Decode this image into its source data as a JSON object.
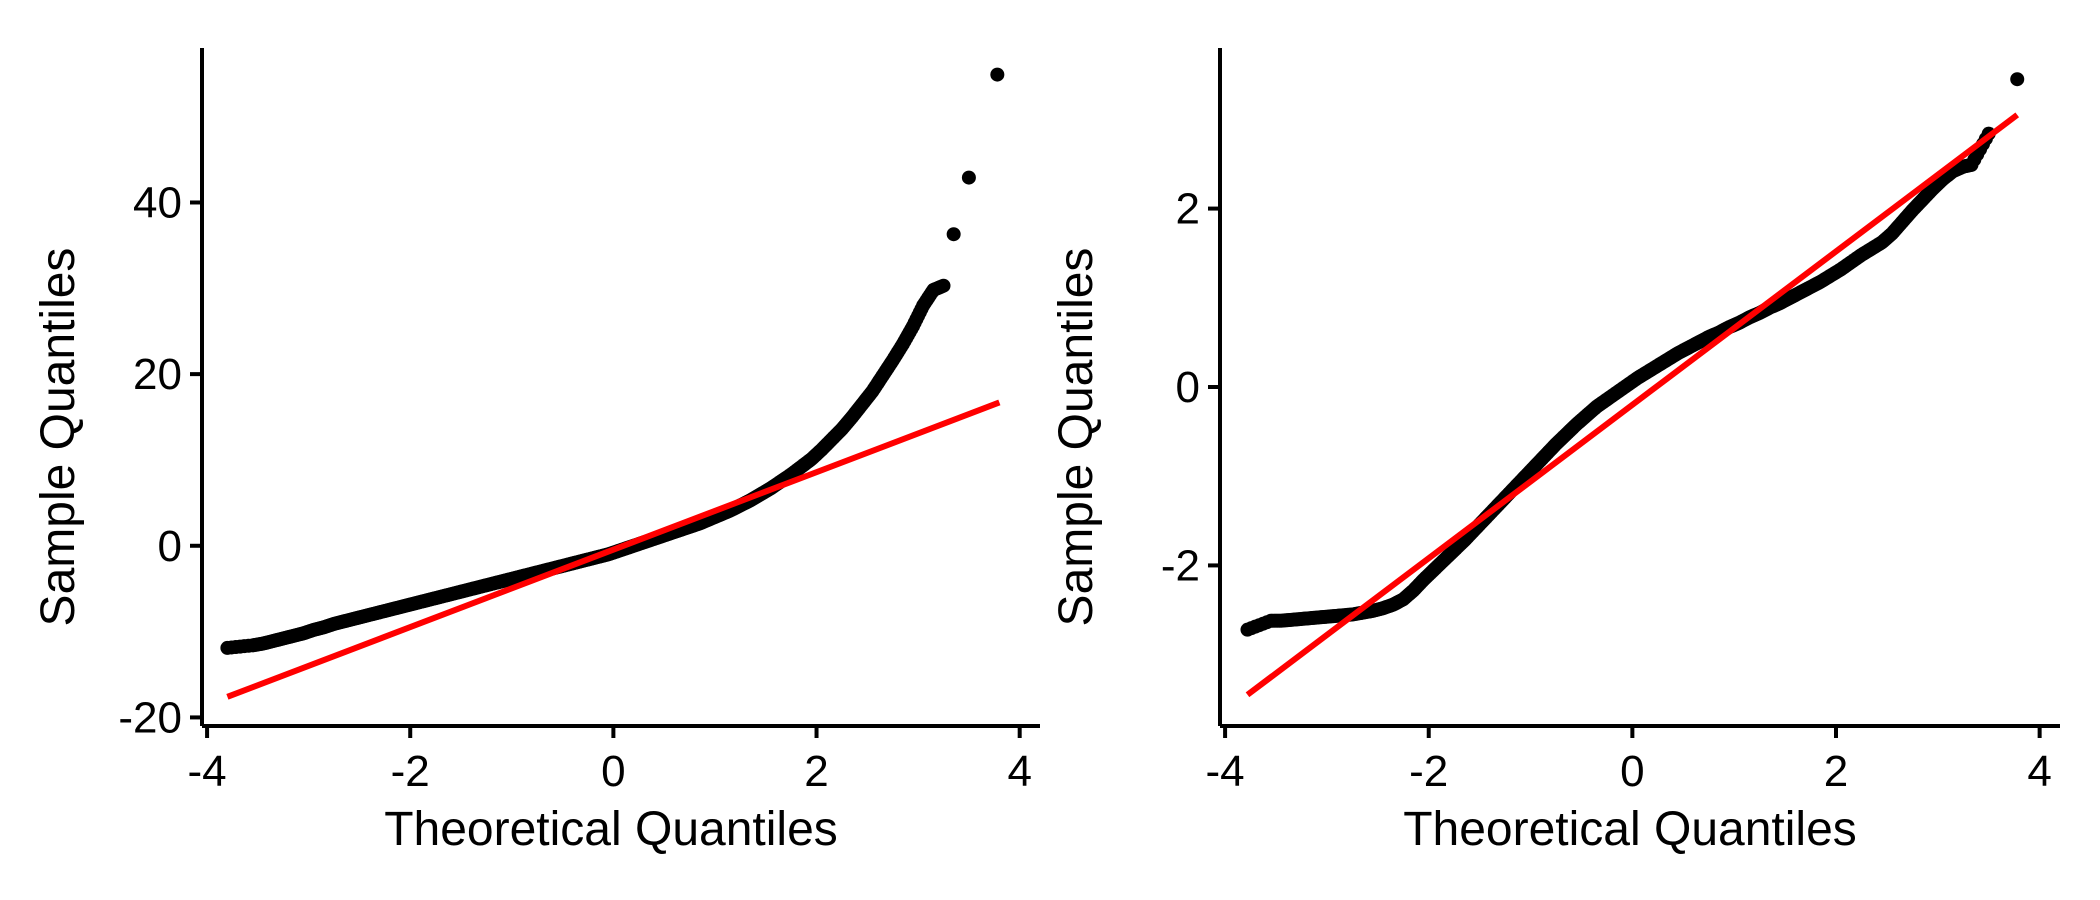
{
  "chart_data": [
    {
      "type": "scatter",
      "title": "",
      "xlabel": "Theoretical Quantiles",
      "ylabel": "Sample Quantiles",
      "xlim": [
        -4.05,
        4.2
      ],
      "ylim": [
        -21,
        58
      ],
      "xticks": [
        -4,
        -2,
        0,
        2,
        4
      ],
      "yticks": [
        -20,
        0,
        20,
        40
      ],
      "xtick_labels": [
        "-4",
        "-2",
        "0",
        "2",
        "4"
      ],
      "ytick_labels": [
        "-20",
        "0",
        "20",
        "40"
      ],
      "grid": false,
      "legend": "none",
      "point_color": "#000000",
      "line_color": "#ff0000",
      "reference_line": {
        "x": [
          -3.8,
          3.8
        ],
        "y": [
          -17.6,
          16.7
        ]
      },
      "points": {
        "x": [
          -3.8,
          -3.55,
          -3.45,
          -3.35,
          -3.25,
          -3.15,
          -3.05,
          -2.95,
          -2.85,
          -2.75,
          -2.65,
          -2.55,
          -2.45,
          -2.35,
          -2.25,
          -2.15,
          -2.05,
          -1.95,
          -1.85,
          -1.75,
          -1.65,
          -1.55,
          -1.45,
          -1.35,
          -1.25,
          -1.15,
          -1.05,
          -0.95,
          -0.85,
          -0.75,
          -0.65,
          -0.55,
          -0.45,
          -0.35,
          -0.25,
          -0.15,
          -0.05,
          0.05,
          0.15,
          0.25,
          0.35,
          0.45,
          0.55,
          0.65,
          0.75,
          0.85,
          0.95,
          1.05,
          1.15,
          1.25,
          1.35,
          1.45,
          1.55,
          1.65,
          1.75,
          1.85,
          1.95,
          2.05,
          2.15,
          2.25,
          2.35,
          2.45,
          2.55,
          2.65,
          2.75,
          2.85,
          2.95,
          3.05,
          3.15,
          3.25,
          3.35,
          3.5,
          3.78
        ],
        "y": [
          -11.9,
          -11.6,
          -11.4,
          -11.1,
          -10.8,
          -10.5,
          -10.2,
          -9.8,
          -9.5,
          -9.1,
          -8.8,
          -8.5,
          -8.2,
          -7.9,
          -7.6,
          -7.3,
          -7.0,
          -6.7,
          -6.4,
          -6.1,
          -5.8,
          -5.5,
          -5.2,
          -4.9,
          -4.6,
          -4.3,
          -4.0,
          -3.7,
          -3.4,
          -3.1,
          -2.8,
          -2.5,
          -2.2,
          -1.9,
          -1.6,
          -1.3,
          -1.0,
          -0.6,
          -0.2,
          0.2,
          0.6,
          1.0,
          1.4,
          1.8,
          2.2,
          2.6,
          3.1,
          3.6,
          4.1,
          4.7,
          5.3,
          6.0,
          6.7,
          7.5,
          8.3,
          9.2,
          10.1,
          11.2,
          12.4,
          13.6,
          15.0,
          16.5,
          18.0,
          19.8,
          21.6,
          23.5,
          25.6,
          28.0,
          29.8,
          30.3,
          36.3,
          42.9,
          54.9
        ]
      }
    },
    {
      "type": "scatter",
      "title": "",
      "xlabel": "Theoretical Quantiles",
      "ylabel": "Sample Quantiles",
      "xlim": [
        -4.05,
        4.2
      ],
      "ylim": [
        -3.8,
        3.8
      ],
      "xticks": [
        -4,
        -2,
        0,
        2,
        4
      ],
      "yticks": [
        -2,
        0,
        2
      ],
      "xtick_labels": [
        "-4",
        "-2",
        "0",
        "2",
        "4"
      ],
      "ytick_labels": [
        "-2",
        "0",
        "2"
      ],
      "grid": false,
      "legend": "none",
      "point_color": "#000000",
      "line_color": "#ff0000",
      "reference_line": {
        "x": [
          -3.78,
          3.78
        ],
        "y": [
          -3.45,
          3.05
        ]
      },
      "points": {
        "x": [
          -3.78,
          -3.55,
          -3.45,
          -3.35,
          -3.25,
          -3.15,
          -3.05,
          -2.95,
          -2.85,
          -2.75,
          -2.65,
          -2.55,
          -2.45,
          -2.35,
          -2.25,
          -2.15,
          -2.05,
          -1.95,
          -1.85,
          -1.75,
          -1.65,
          -1.55,
          -1.45,
          -1.35,
          -1.25,
          -1.15,
          -1.05,
          -0.95,
          -0.85,
          -0.75,
          -0.65,
          -0.55,
          -0.45,
          -0.35,
          -0.25,
          -0.15,
          -0.05,
          0.05,
          0.15,
          0.25,
          0.35,
          0.45,
          0.55,
          0.65,
          0.75,
          0.85,
          0.95,
          1.05,
          1.15,
          1.25,
          1.35,
          1.45,
          1.55,
          1.65,
          1.75,
          1.85,
          1.95,
          2.05,
          2.15,
          2.25,
          2.35,
          2.45,
          2.55,
          2.65,
          2.75,
          2.85,
          2.95,
          3.05,
          3.15,
          3.25,
          3.33,
          3.5,
          3.78
        ],
        "y": [
          -2.72,
          -2.62,
          -2.62,
          -2.61,
          -2.6,
          -2.59,
          -2.58,
          -2.57,
          -2.56,
          -2.55,
          -2.53,
          -2.51,
          -2.48,
          -2.44,
          -2.38,
          -2.28,
          -2.16,
          -2.05,
          -1.94,
          -1.83,
          -1.72,
          -1.6,
          -1.48,
          -1.36,
          -1.24,
          -1.12,
          -1.0,
          -0.88,
          -0.76,
          -0.64,
          -0.53,
          -0.42,
          -0.32,
          -0.22,
          -0.14,
          -0.06,
          0.02,
          0.1,
          0.17,
          0.24,
          0.31,
          0.38,
          0.44,
          0.5,
          0.56,
          0.61,
          0.67,
          0.72,
          0.78,
          0.83,
          0.89,
          0.94,
          1.0,
          1.06,
          1.12,
          1.18,
          1.25,
          1.32,
          1.4,
          1.48,
          1.55,
          1.62,
          1.72,
          1.85,
          1.98,
          2.1,
          2.22,
          2.33,
          2.42,
          2.47,
          2.49,
          2.84,
          3.45
        ]
      }
    }
  ]
}
